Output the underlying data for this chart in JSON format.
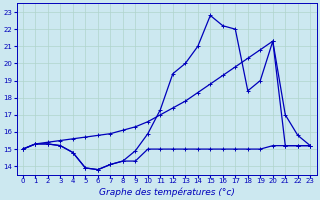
{
  "title": "Graphe des températures (°c)",
  "bg_color": "#cce8f0",
  "grid_color": "#b0d4cc",
  "line_color": "#0000bb",
  "ylim": [
    13.5,
    23.5
  ],
  "xlim": [
    -0.5,
    23.5
  ],
  "yticks": [
    14,
    15,
    16,
    17,
    18,
    19,
    20,
    21,
    22,
    23
  ],
  "xticks": [
    0,
    1,
    2,
    3,
    4,
    5,
    6,
    7,
    8,
    9,
    10,
    11,
    12,
    13,
    14,
    15,
    16,
    17,
    18,
    19,
    20,
    21,
    22,
    23
  ],
  "series1_x": [
    0,
    1,
    2,
    3,
    4,
    5,
    6,
    7,
    8,
    9,
    10,
    11,
    12,
    13,
    14,
    15,
    16,
    17,
    18,
    19,
    20,
    21,
    22,
    23
  ],
  "series1_y": [
    15.0,
    15.3,
    15.3,
    15.2,
    14.8,
    13.9,
    13.8,
    14.1,
    14.3,
    14.3,
    15.0,
    15.0,
    15.0,
    15.0,
    15.0,
    15.0,
    15.0,
    15.0,
    15.0,
    15.0,
    15.2,
    15.2,
    15.2,
    15.2
  ],
  "series2_x": [
    0,
    1,
    2,
    3,
    4,
    5,
    6,
    7,
    8,
    9,
    10,
    11,
    12,
    13,
    14,
    15,
    16,
    17,
    18,
    19,
    20,
    21,
    22,
    23
  ],
  "series2_y": [
    15.0,
    15.3,
    15.3,
    15.2,
    14.8,
    13.9,
    13.8,
    14.1,
    14.3,
    14.9,
    15.9,
    17.3,
    19.4,
    20.0,
    21.0,
    22.8,
    22.2,
    22.0,
    18.4,
    19.0,
    21.3,
    17.0,
    15.8,
    15.2
  ],
  "series3_x": [
    0,
    1,
    2,
    3,
    4,
    5,
    6,
    7,
    8,
    9,
    10,
    11,
    12,
    13,
    14,
    15,
    16,
    17,
    18,
    19,
    20,
    21,
    22,
    23
  ],
  "series3_y": [
    15.0,
    15.3,
    15.4,
    15.5,
    15.6,
    15.7,
    15.8,
    15.9,
    16.1,
    16.3,
    16.6,
    17.0,
    17.4,
    17.8,
    18.3,
    18.8,
    19.3,
    19.8,
    20.3,
    20.8,
    21.3,
    15.2,
    15.2,
    15.2
  ],
  "xlabel_fontsize": 6.5,
  "ylabel_fontsize": 5.5,
  "tick_fontsize": 5.0,
  "line_width": 0.9,
  "marker_size": 2.5
}
